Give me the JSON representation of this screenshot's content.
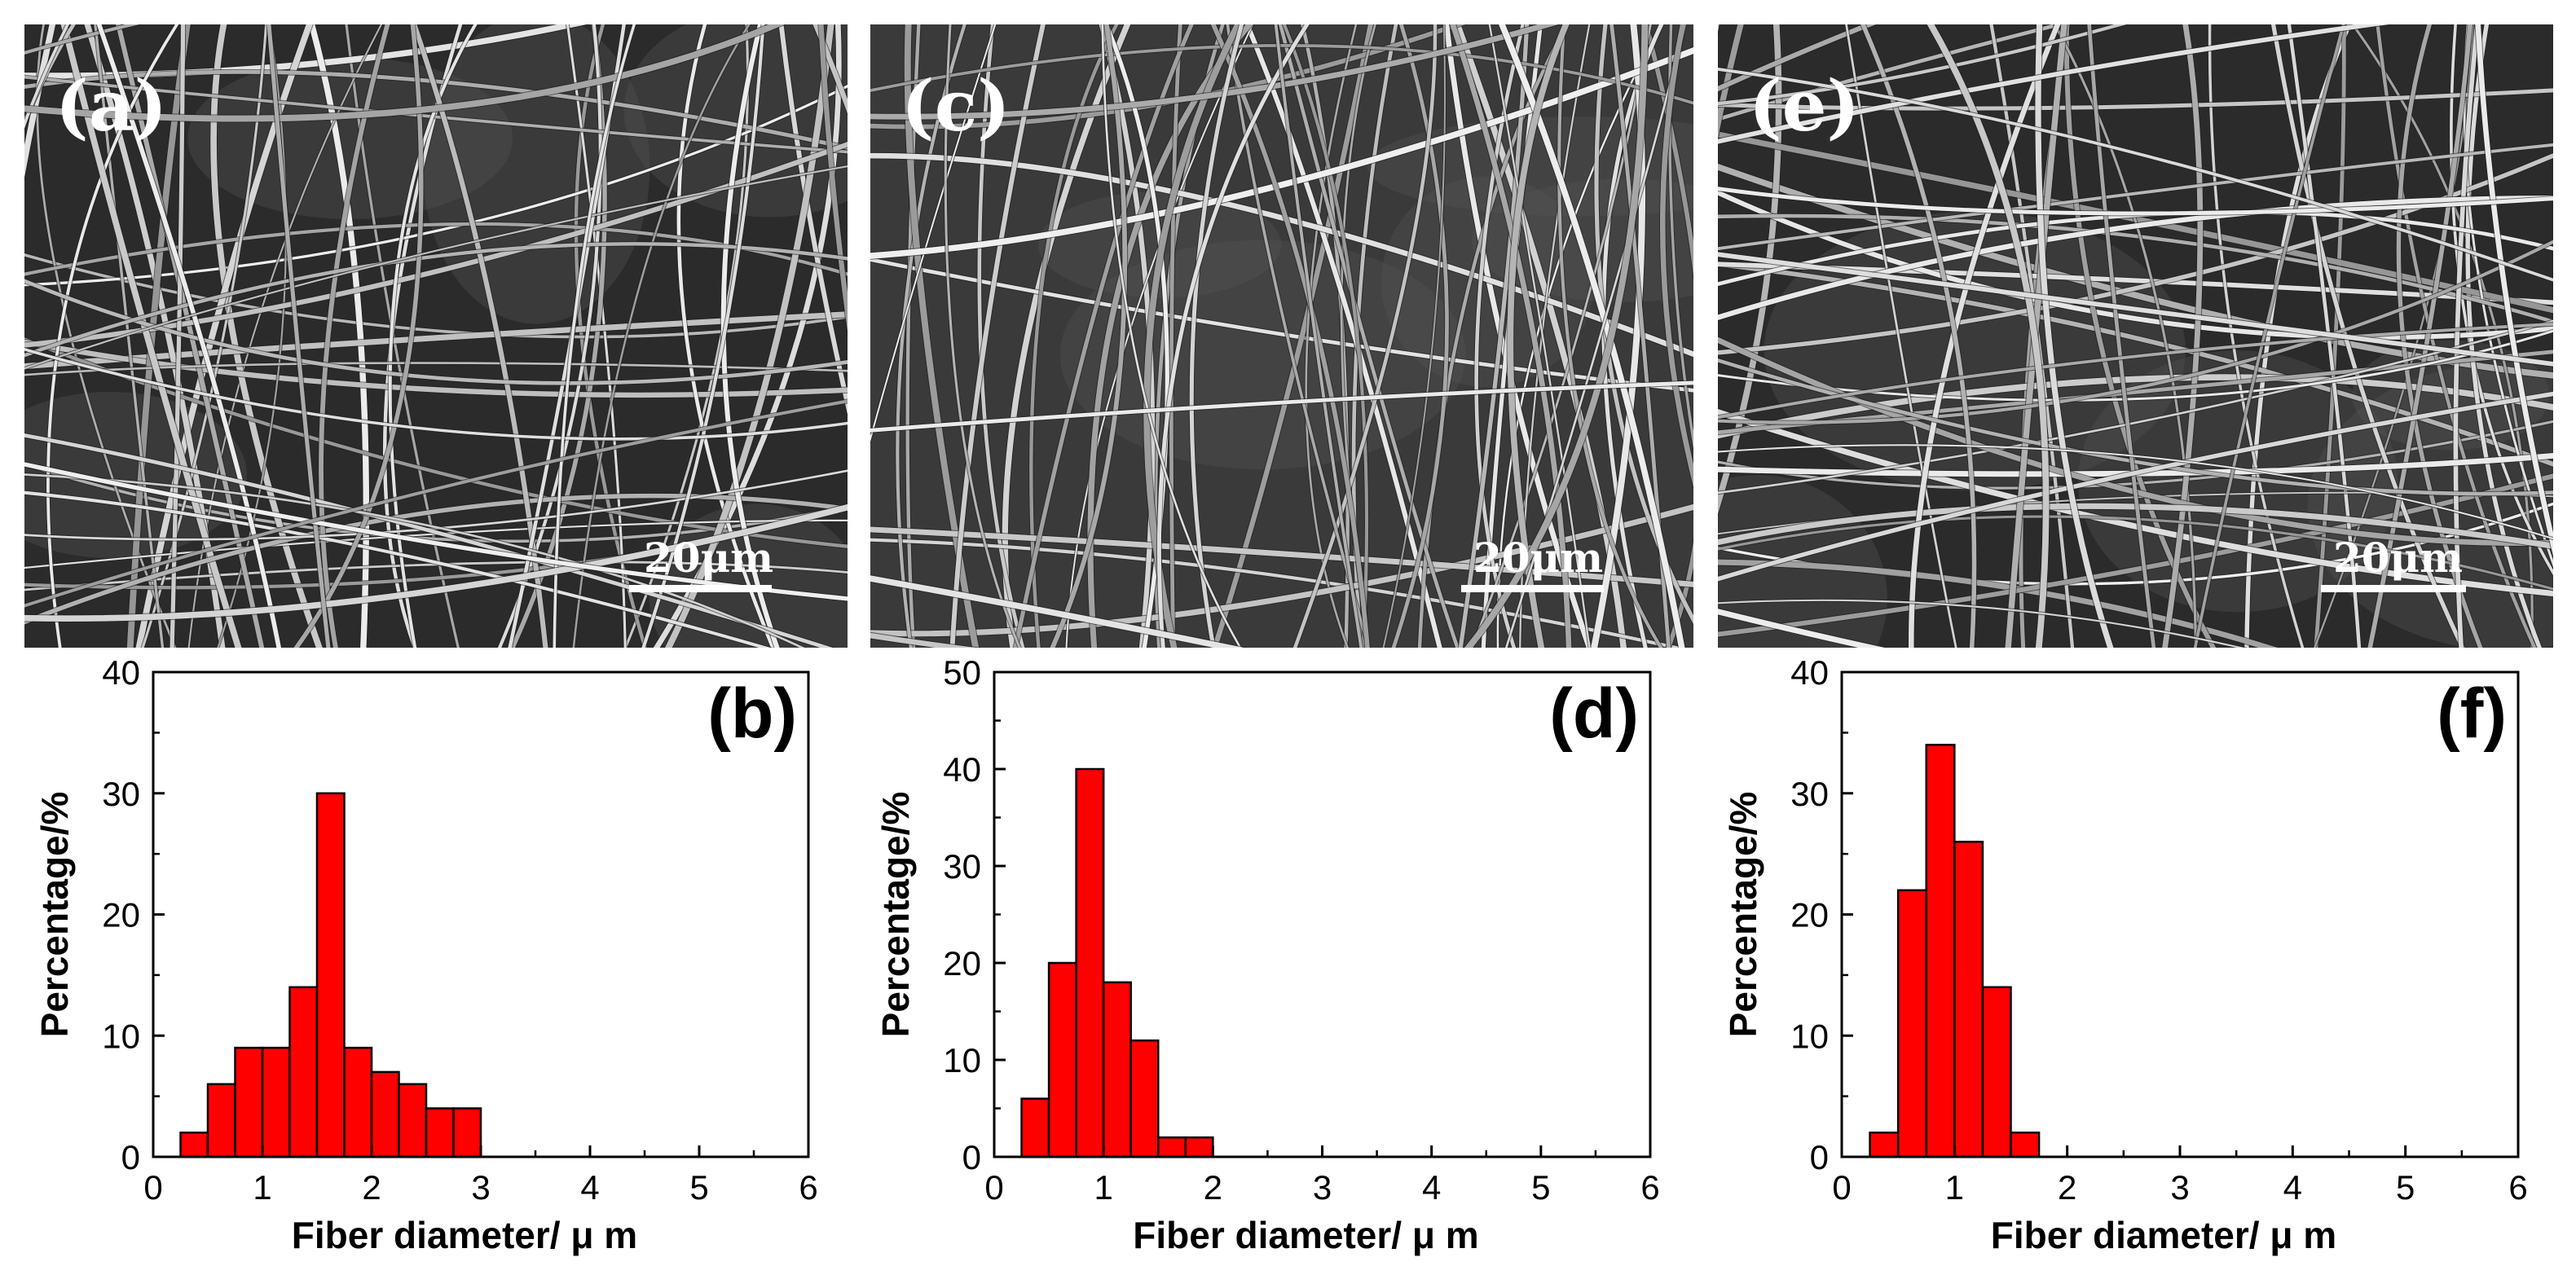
{
  "sem_images": [
    {
      "label": "(a)",
      "scale_bar": "20μm"
    },
    {
      "label": "(c)",
      "scale_bar": "20μm"
    },
    {
      "label": "(e)",
      "scale_bar": "20μm"
    }
  ],
  "colors": {
    "bar_fill": "#ff0000",
    "bar_stroke": "#000000",
    "axis": "#000000"
  },
  "chart_data": [
    {
      "type": "bar",
      "panel_label": "(b)",
      "xlabel": "Fiber diameter/ μ m",
      "ylabel": "Percentage/%",
      "xlim": [
        0,
        6
      ],
      "ylim": [
        0,
        40
      ],
      "xticks": [
        0,
        1,
        2,
        3,
        4,
        5,
        6
      ],
      "yticks": [
        0,
        10,
        20,
        30,
        40
      ],
      "bin_width": 0.25,
      "x": [
        0.5,
        0.75,
        1.0,
        1.25,
        1.5,
        1.75,
        2.0,
        2.25,
        2.5,
        2.75,
        3.0,
        3.25
      ],
      "values": [
        2,
        6,
        9,
        9,
        14,
        30,
        9,
        7,
        6,
        4,
        4,
        0
      ]
    },
    {
      "type": "bar",
      "panel_label": "(d)",
      "xlabel": "Fiber diameter/ μ m",
      "ylabel": "Percentage/%",
      "xlim": [
        0,
        6
      ],
      "ylim": [
        0,
        50
      ],
      "xticks": [
        0,
        1,
        2,
        3,
        4,
        5,
        6
      ],
      "yticks": [
        0,
        10,
        20,
        30,
        40,
        50
      ],
      "bin_width": 0.25,
      "x": [
        0.5,
        0.75,
        1.0,
        1.25,
        1.5,
        1.75,
        2.0
      ],
      "values": [
        6,
        20,
        40,
        18,
        12,
        2,
        2
      ]
    },
    {
      "type": "bar",
      "panel_label": "(f)",
      "xlabel": "Fiber diameter/ μ m",
      "ylabel": "Percentage/%",
      "xlim": [
        0,
        6
      ],
      "ylim": [
        0,
        40
      ],
      "xticks": [
        0,
        1,
        2,
        3,
        4,
        5,
        6
      ],
      "yticks": [
        0,
        10,
        20,
        30,
        40
      ],
      "bin_width": 0.25,
      "x": [
        0.5,
        0.75,
        1.0,
        1.25,
        1.5,
        1.75
      ],
      "values": [
        2,
        22,
        34,
        26,
        14,
        2
      ]
    }
  ]
}
